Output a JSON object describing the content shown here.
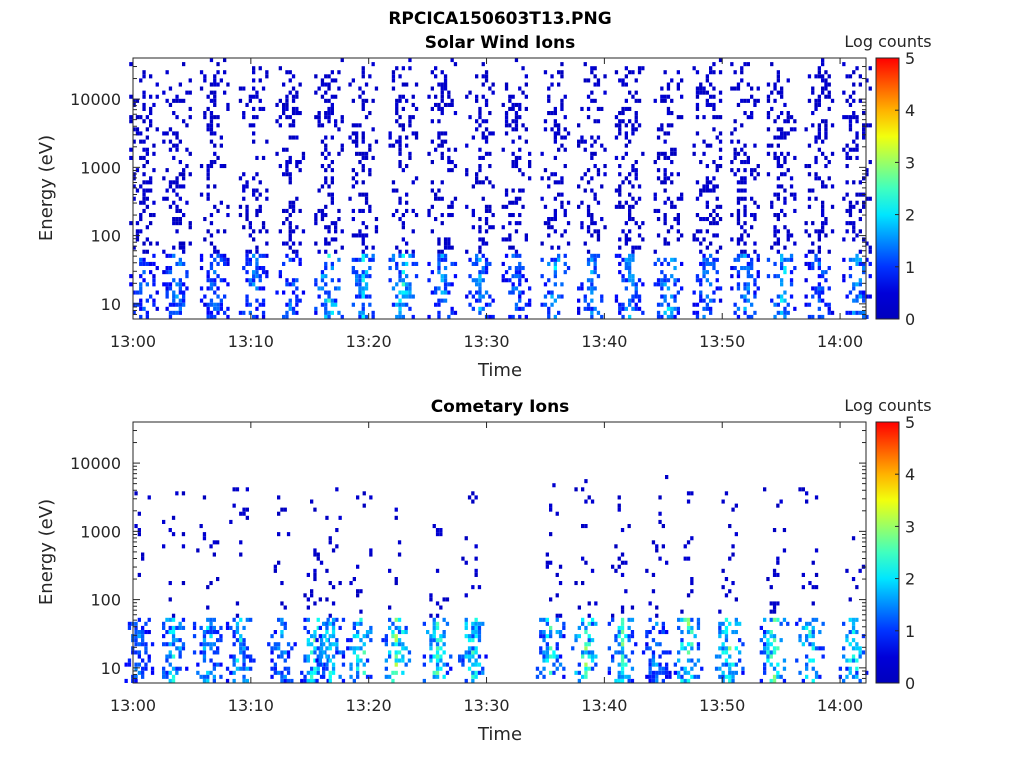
{
  "figure_title": "RPCICA150603T13.PNG",
  "chart_data": [
    {
      "type": "heatmap",
      "title": "Solar Wind Ions",
      "xlabel": "Time",
      "ylabel": "Energy (eV)",
      "x_range_minutes_after_1300": [
        0,
        62.2
      ],
      "y_range_eV": [
        6,
        40000
      ],
      "y_scale": "log",
      "xticks": [
        "13:00",
        "13:10",
        "13:20",
        "13:30",
        "13:40",
        "13:50",
        "14:00"
      ],
      "yticks": [
        "10",
        "100",
        "1000",
        "10000"
      ],
      "colorbar": {
        "label": "Log counts",
        "range": [
          0,
          5
        ],
        "ticks": [
          "0",
          "1",
          "2",
          "3",
          "4",
          "5"
        ]
      },
      "bursts": [
        {
          "t": 0.8,
          "peak": 1.2
        },
        {
          "t": 3.6,
          "peak": 1.6
        },
        {
          "t": 6.8,
          "peak": 1.3
        },
        {
          "t": 10.1,
          "peak": 1.4
        },
        {
          "t": 13.2,
          "peak": 1.3
        },
        {
          "t": 16.5,
          "peak": 2.3
        },
        {
          "t": 19.4,
          "peak": 2.0
        },
        {
          "t": 22.8,
          "peak": 2.2
        },
        {
          "t": 26.1,
          "peak": 1.6
        },
        {
          "t": 29.3,
          "peak": 1.6
        },
        {
          "t": 32.4,
          "peak": 1.3
        },
        {
          "t": 35.7,
          "peak": 1.9
        },
        {
          "t": 38.8,
          "peak": 1.6
        },
        {
          "t": 42.0,
          "peak": 1.6
        },
        {
          "t": 45.3,
          "peak": 1.9
        },
        {
          "t": 48.6,
          "peak": 1.4
        },
        {
          "t": 51.8,
          "peak": 1.6
        },
        {
          "t": 54.9,
          "peak": 2.2
        },
        {
          "t": 58.1,
          "peak": 1.3
        },
        {
          "t": 61.3,
          "peak": 1.7
        }
      ],
      "max_energy_eV": 20000
    },
    {
      "type": "heatmap",
      "title": "Cometary Ions",
      "xlabel": "Time",
      "ylabel": "Energy (eV)",
      "x_range_minutes_after_1300": [
        0,
        62.2
      ],
      "y_range_eV": [
        6,
        40000
      ],
      "y_scale": "log",
      "xticks": [
        "13:00",
        "13:10",
        "13:20",
        "13:30",
        "13:40",
        "13:50",
        "14:00"
      ],
      "yticks": [
        "10",
        "100",
        "1000",
        "10000"
      ],
      "colorbar": {
        "label": "Log counts",
        "range": [
          0,
          5
        ],
        "ticks": [
          "0",
          "1",
          "2",
          "3",
          "4",
          "5"
        ]
      },
      "bursts": [
        {
          "t": 0.4,
          "peak": 1.4
        },
        {
          "t": 3.3,
          "peak": 2.2
        },
        {
          "t": 6.2,
          "peak": 2.0
        },
        {
          "t": 9.0,
          "peak": 2.3
        },
        {
          "t": 12.5,
          "peak": 1.6
        },
        {
          "t": 15.3,
          "peak": 2.6
        },
        {
          "t": 16.6,
          "peak": 2.2
        },
        {
          "t": 19.2,
          "peak": 2.8
        },
        {
          "t": 22.2,
          "peak": 3.0
        },
        {
          "t": 25.7,
          "peak": 2.6
        },
        {
          "t": 28.7,
          "peak": 2.5
        },
        {
          "t": 35.3,
          "peak": 2.4
        },
        {
          "t": 38.3,
          "peak": 3.1
        },
        {
          "t": 41.4,
          "peak": 2.7
        },
        {
          "t": 44.3,
          "peak": 1.6
        },
        {
          "t": 47.0,
          "peak": 2.8
        },
        {
          "t": 50.5,
          "peak": 2.9
        },
        {
          "t": 54.3,
          "peak": 3.0
        },
        {
          "t": 57.3,
          "peak": 2.4
        },
        {
          "t": 61.0,
          "peak": 2.4
        }
      ],
      "max_energy_eV": 3000
    }
  ]
}
